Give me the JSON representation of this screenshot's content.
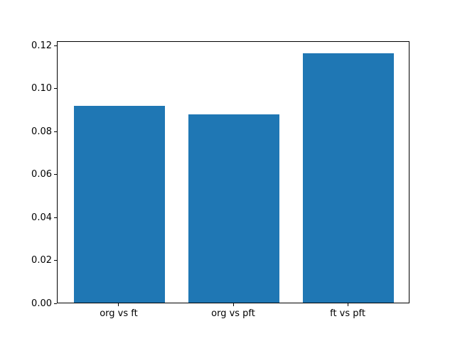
{
  "chart_data": {
    "type": "bar",
    "title": "",
    "xlabel": "",
    "ylabel": "",
    "categories": [
      "org vs ft",
      "org vs pft",
      "ft vs pft"
    ],
    "values": [
      0.0915,
      0.0877,
      0.116
    ],
    "bar_color": "#1f77b4",
    "ylim": [
      0,
      0.122
    ],
    "yticks": [
      0.0,
      0.02,
      0.04,
      0.06,
      0.08,
      0.1,
      0.12
    ],
    "ytick_labels": [
      "0.00",
      "0.02",
      "0.04",
      "0.06",
      "0.08",
      "0.10",
      "0.12"
    ],
    "grid": false,
    "legend": null,
    "axis_color": "#000000",
    "background_color": "#ffffff"
  }
}
